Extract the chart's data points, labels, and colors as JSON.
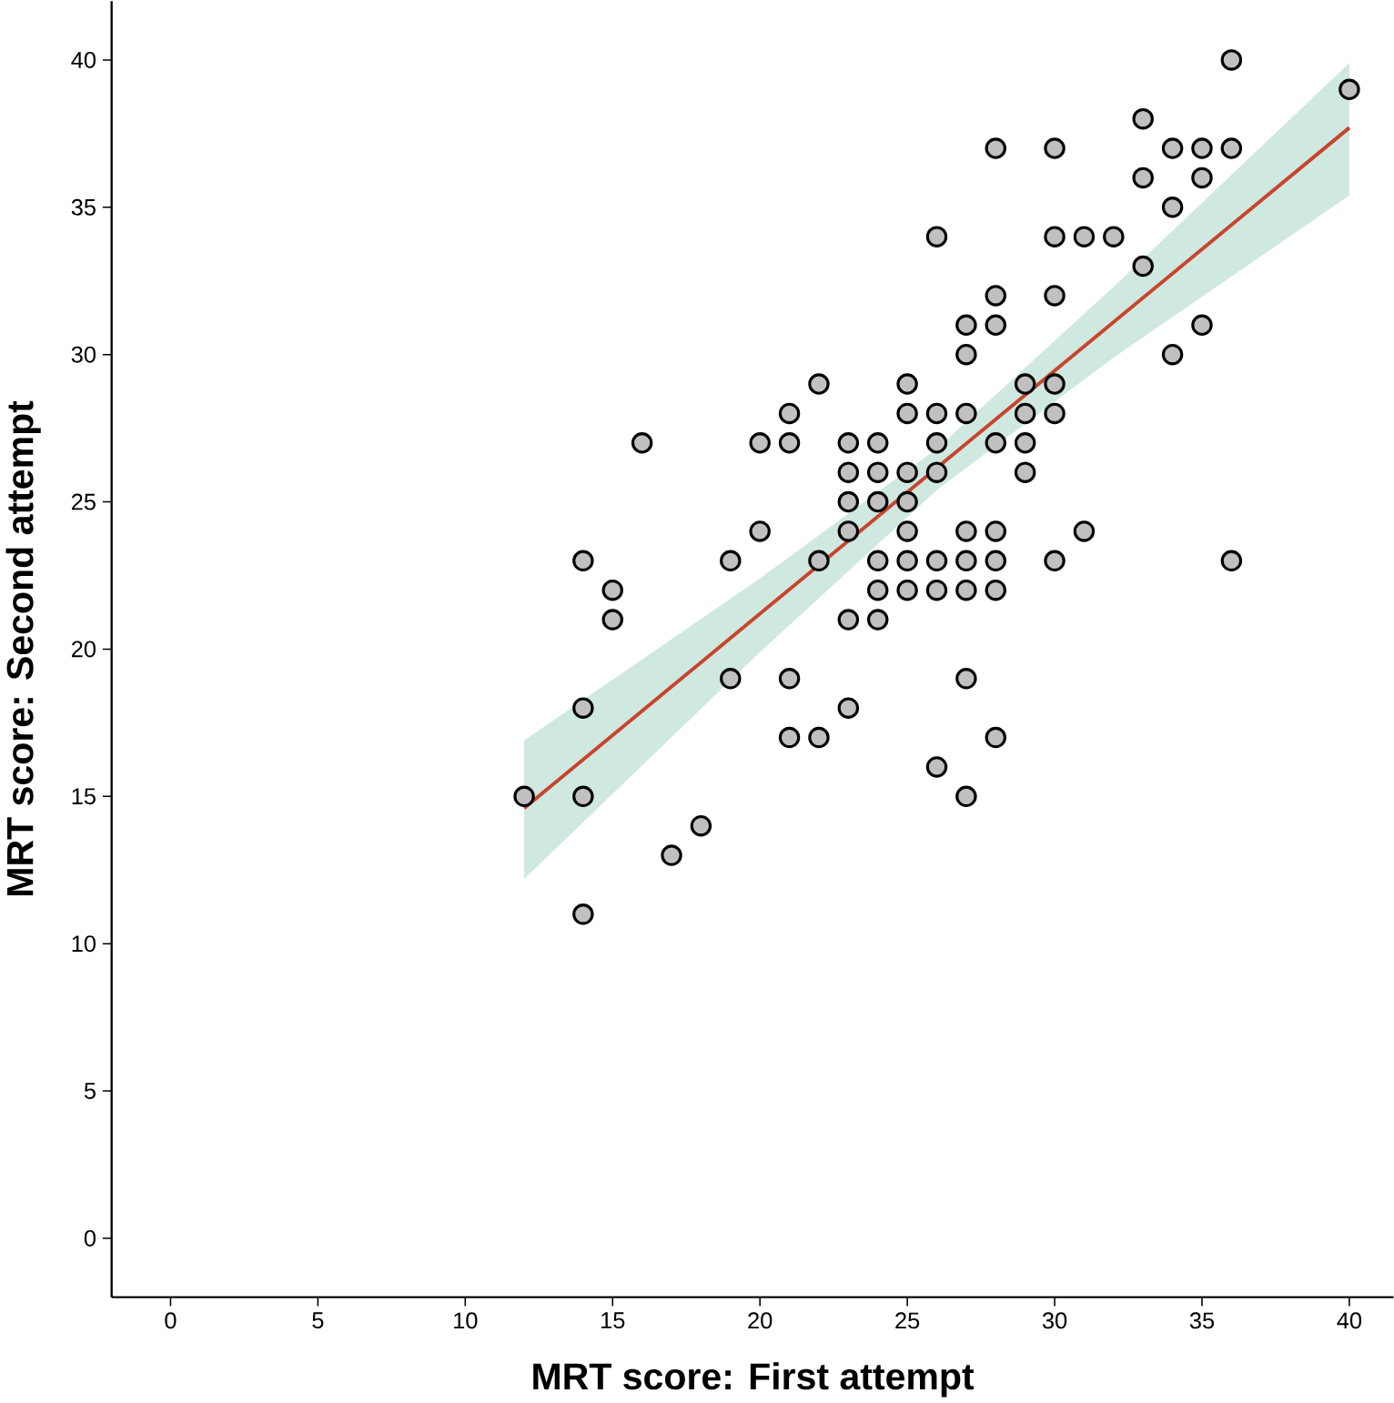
{
  "chart_data": {
    "type": "scatter",
    "xlabel": "MRT score: First attempt",
    "ylabel": "MRT score: Second attempt",
    "xlim": [
      -2,
      41.5
    ],
    "ylim": [
      -2,
      42
    ],
    "xticks": [
      0,
      5,
      10,
      15,
      20,
      25,
      30,
      35,
      40
    ],
    "yticks": [
      0,
      5,
      10,
      15,
      20,
      25,
      30,
      35,
      40
    ],
    "grid": false,
    "marker": "circle",
    "series": [
      {
        "color": "#c0c0c0",
        "x": [
          12,
          14,
          14,
          14,
          14,
          15,
          15,
          16,
          17,
          18,
          19,
          19,
          20,
          20,
          21,
          21,
          21,
          21,
          22,
          22,
          22,
          23,
          23,
          23,
          23,
          23,
          23,
          24,
          24,
          24,
          24,
          24,
          24,
          25,
          25,
          25,
          25,
          25,
          25,
          25,
          26,
          26,
          26,
          26,
          26,
          26,
          26,
          27,
          27,
          27,
          27,
          27,
          27,
          27,
          27,
          28,
          28,
          28,
          28,
          28,
          28,
          28,
          28,
          29,
          29,
          29,
          29,
          30,
          30,
          30,
          30,
          30,
          30,
          31,
          31,
          32,
          33,
          33,
          33,
          34,
          34,
          34,
          35,
          35,
          35,
          36,
          36,
          36,
          40
        ],
        "values": [
          15,
          23,
          18,
          15,
          11,
          22,
          21,
          27,
          13,
          14,
          23,
          19,
          27,
          24,
          28,
          27,
          19,
          17,
          29,
          23,
          17,
          27,
          26,
          25,
          24,
          21,
          18,
          27,
          26,
          25,
          23,
          22,
          21,
          29,
          28,
          26,
          25,
          24,
          23,
          22,
          34,
          28,
          27,
          26,
          23,
          22,
          16,
          31,
          30,
          28,
          24,
          23,
          22,
          19,
          15,
          37,
          32,
          31,
          27,
          24,
          23,
          22,
          17,
          29,
          28,
          27,
          26,
          37,
          34,
          32,
          29,
          28,
          23,
          34,
          24,
          34,
          38,
          36,
          33,
          37,
          35,
          30,
          37,
          36,
          31,
          40,
          37,
          23,
          39
        ]
      },
      {
        "type": "line",
        "color": "#c8442c",
        "marker": "none",
        "line_style": "solid",
        "x": [
          12,
          20,
          26,
          32,
          40
        ],
        "values": [
          14.6,
          21.2,
          26.15,
          31.1,
          37.7
        ],
        "lower": [
          12.2,
          19.9,
          25.4,
          29.9,
          35.4
        ],
        "upper": [
          16.9,
          22.4,
          26.8,
          32.3,
          39.9
        ]
      }
    ]
  }
}
